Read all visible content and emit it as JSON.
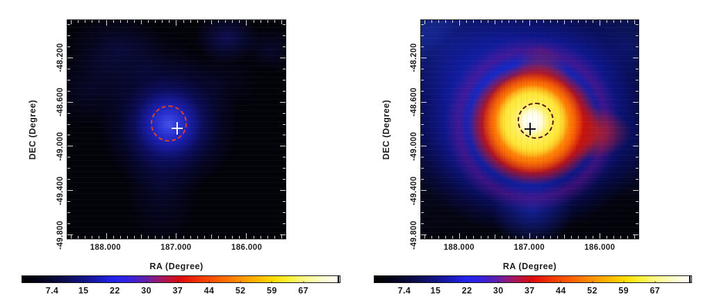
{
  "figure": {
    "background": "#ffffff",
    "panels": [
      {
        "id": "left-faint-map",
        "xlabel": "RA (Degree)",
        "ylabel": "DEC (Degree)",
        "x_tick_labels": [
          "188.000",
          "187.000",
          "186.000"
        ],
        "y_tick_labels": [
          "-48.200",
          "-48.600",
          "-49.000",
          "-49.400",
          "-49.800"
        ],
        "colorbar_tick_labels": [
          "7.4",
          "15",
          "22",
          "30",
          "37",
          "44",
          "52",
          "59",
          "67"
        ]
      },
      {
        "id": "right-bright-map",
        "xlabel": "RA (Degree)",
        "ylabel": "DEC (Degree)",
        "x_tick_labels": [
          "188.000",
          "187.000",
          "186.000"
        ],
        "y_tick_labels": [
          "-48.200",
          "-48.600",
          "-49.000",
          "-49.400",
          "-49.800"
        ],
        "colorbar_tick_labels": [
          "7.4",
          "15",
          "22",
          "30",
          "37",
          "44",
          "52",
          "59",
          "67"
        ]
      }
    ]
  },
  "chart_data": [
    {
      "type": "heatmap",
      "panel": "left",
      "title": "",
      "xlabel": "RA (Degree)",
      "ylabel": "DEC (Degree)",
      "x_ticks": [
        188.0,
        187.0,
        186.0
      ],
      "y_ticks": [
        -48.2,
        -48.6,
        -49.0,
        -49.4,
        -49.8
      ],
      "x_range_deg": [
        188.55,
        185.45
      ],
      "y_range_deg": [
        -49.85,
        -47.85
      ],
      "grid": false,
      "legend": null,
      "colorbar": {
        "position": "bottom",
        "tick_values": [
          7.4,
          15,
          22,
          30,
          37,
          44,
          52,
          59,
          67
        ],
        "value_range": [
          0,
          74
        ],
        "colormap_stops": [
          "#000000",
          "#12127a",
          "#2424ee",
          "#8c1a80",
          "#dd0c0c",
          "#ff6000",
          "#ff8d00",
          "#ffdd00",
          "#fffa8c",
          "#ffffff"
        ]
      },
      "features": [
        {
          "kind": "diffuse-source",
          "ra": 187.07,
          "dec": -48.87,
          "peak_value": 24,
          "extent_deg": 0.55,
          "color": "blue"
        },
        {
          "kind": "faint-cloud",
          "ra": 188.25,
          "dec": -48.0,
          "peak_value": 12,
          "color": "dark-blue"
        },
        {
          "kind": "faint-cloud",
          "ra": 186.25,
          "dec": -47.9,
          "peak_value": 14,
          "color": "dark-blue"
        }
      ],
      "markers": {
        "cross": {
          "ra": 187.0,
          "dec": -48.86,
          "color": "white"
        },
        "dashed_circle": {
          "ra": 187.08,
          "dec": -48.8,
          "radius_deg": 0.16,
          "color": "red"
        }
      }
    },
    {
      "type": "heatmap",
      "panel": "right",
      "title": "",
      "xlabel": "RA (Degree)",
      "ylabel": "DEC (Degree)",
      "x_ticks": [
        188.0,
        187.0,
        186.0
      ],
      "y_ticks": [
        -48.2,
        -48.6,
        -49.0,
        -49.4,
        -49.8
      ],
      "x_range_deg": [
        188.55,
        185.45
      ],
      "y_range_deg": [
        -49.85,
        -47.85
      ],
      "grid": false,
      "legend": null,
      "colorbar": {
        "position": "bottom",
        "tick_values": [
          7.4,
          15,
          22,
          30,
          37,
          44,
          52,
          59,
          67
        ],
        "value_range": [
          0,
          74
        ],
        "colormap_stops": [
          "#000000",
          "#12127a",
          "#2424ee",
          "#8c1a80",
          "#dd0c0c",
          "#ff6000",
          "#ff8d00",
          "#ffdd00",
          "#fffa8c",
          "#ffffff"
        ]
      },
      "features": [
        {
          "kind": "bright-source-core",
          "ra": 186.95,
          "dec": -48.78,
          "peak_value": 74,
          "extent_deg": 0.12,
          "color": "white"
        },
        {
          "kind": "halo",
          "ra": 186.95,
          "dec": -48.8,
          "peak_value": 55,
          "extent_deg": 0.35,
          "color": "yellow-orange"
        },
        {
          "kind": "halo-extension-east",
          "ra": 186.3,
          "dec": -48.95,
          "peak_value": 38,
          "color": "red"
        },
        {
          "kind": "diffuse-emission",
          "ra": 187.6,
          "dec": -48.2,
          "peak_value": 20,
          "color": "blue"
        },
        {
          "kind": "diffuse-extension-south",
          "ra": 187.0,
          "dec": -49.55,
          "peak_value": 16,
          "color": "blue"
        }
      ],
      "markers": {
        "cross": {
          "ra": 187.0,
          "dec": -48.86,
          "color": "black"
        },
        "dashed_circle": {
          "ra": 186.98,
          "dec": -48.78,
          "radius_deg": 0.16,
          "color": "dark-red"
        }
      }
    }
  ]
}
